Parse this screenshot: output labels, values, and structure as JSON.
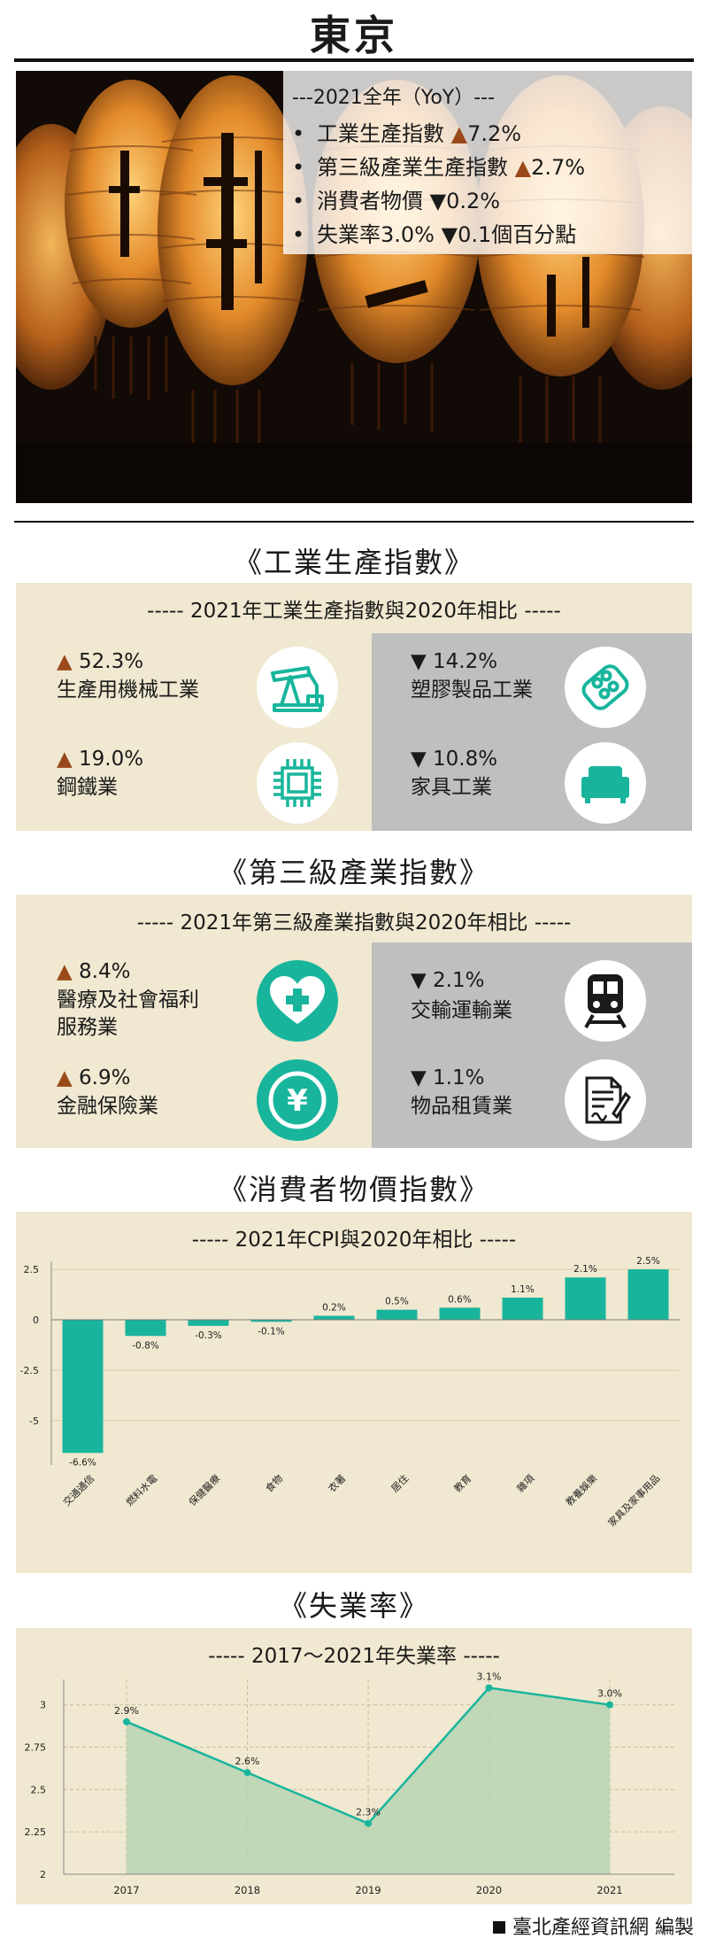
{
  "city": "東京",
  "summary": {
    "heading": "---2021全年（YoY）---",
    "items": [
      {
        "label": "工業生產指數",
        "sign": "▲",
        "value": "7.2%"
      },
      {
        "label": "第三級產業生產指數",
        "sign": "▲",
        "value": "2.7%"
      },
      {
        "label": "消費者物價",
        "sign": "▼",
        "value": "0.2%"
      },
      {
        "label": "失業率3.0%",
        "sign": "▼",
        "value": "0.1個百分點"
      }
    ]
  },
  "industrial": {
    "title": "《工業生產指數》",
    "subtitle": "----- 2021年工業生產指數與2020年相比 -----",
    "up": [
      {
        "sign": "▲",
        "value": "52.3%",
        "label": "生產用機械工業",
        "icon": "oil-pump-icon"
      },
      {
        "sign": "▲",
        "value": "19.0%",
        "label": "鋼鐵業",
        "icon": "chip-icon"
      }
    ],
    "down": [
      {
        "sign": "▼",
        "value": "14.2%",
        "label": "塑膠製品工業",
        "icon": "pill-pack-icon"
      },
      {
        "sign": "▼",
        "value": "10.8%",
        "label": "家具工業",
        "icon": "sofa-icon"
      }
    ]
  },
  "tertiary": {
    "title": "《第三級產業指數》",
    "subtitle": "----- 2021年第三級產業指數與2020年相比 -----",
    "up": [
      {
        "sign": "▲",
        "value": "8.4%",
        "label": "醫療及社會福利\n服務業",
        "icon": "heart-cross-icon"
      },
      {
        "sign": "▲",
        "value": "6.9%",
        "label": "金融保險業",
        "icon": "yen-coin-icon"
      }
    ],
    "down": [
      {
        "sign": "▼",
        "value": "2.1%",
        "label": "交輸運輸業",
        "icon": "train-icon"
      },
      {
        "sign": "▼",
        "value": "1.1%",
        "label": "物品租賃業",
        "icon": "contract-icon"
      }
    ]
  },
  "cpi": {
    "title": "《消費者物價指數》"
  },
  "unemployment": {
    "title": "《失業率》"
  },
  "colors": {
    "panel": "#f0e8d0",
    "teal": "#18b59c",
    "gray": "#bfbfbf",
    "up": "#9a4a1a"
  },
  "chart_data": [
    {
      "type": "bar",
      "title": "----- 2021年CPI與2020年相比 -----",
      "categories": [
        "交通通信",
        "燃料水電",
        "保健醫療",
        "食物",
        "衣著",
        "居住",
        "教育",
        "雜項",
        "教養娛樂",
        "家具及家事用品"
      ],
      "values": [
        -6.6,
        -0.8,
        -0.3,
        -0.1,
        0.2,
        0.5,
        0.6,
        1.1,
        2.1,
        2.5
      ],
      "data_labels": [
        "-6.6%",
        "-0.8%",
        "-0.3%",
        "-0.1%",
        "0.2%",
        "0.5%",
        "0.6%",
        "1.1%",
        "2.1%",
        "2.5%"
      ],
      "yticks": [
        2.5,
        0,
        -2.5,
        -5
      ],
      "ytick_labels": [
        "2.5",
        "0",
        "-2.5",
        "-5"
      ],
      "ylim": [
        -7.2,
        2.9
      ],
      "color": "#18b59c",
      "grid": true
    },
    {
      "type": "area",
      "title": "----- 2017～2021年失業率 -----",
      "x": [
        "2017",
        "2018",
        "2019",
        "2020",
        "2021"
      ],
      "values": [
        2.9,
        2.6,
        2.3,
        3.1,
        3.0
      ],
      "data_labels": [
        "2.9%",
        "2.6%",
        "2.3%",
        "3.1%",
        "3.0%"
      ],
      "yticks": [
        3,
        2.75,
        2.5,
        2.25,
        2
      ],
      "ytick_labels": [
        "3",
        "2.75",
        "2.5",
        "2.25",
        "2"
      ],
      "ylim": [
        2,
        3.15
      ],
      "line_color": "#18b59c",
      "fill_color": "#b7d4b4",
      "grid": true
    }
  ],
  "credit": "臺北產經資訊網 編製"
}
